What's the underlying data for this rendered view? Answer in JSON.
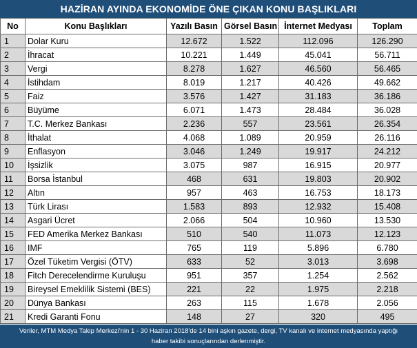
{
  "title": "HAZİRAN AYINDA EKONOMİDE ÖNE ÇIKAN KONU BAŞLIKLARI",
  "columns": [
    "No",
    "Konu Başlıkları",
    "Yazılı Basın",
    "Görsel Basın",
    "İnternet Medyası",
    "Toplam"
  ],
  "rows": [
    {
      "no": "1",
      "topic": "Dolar Kuru",
      "print": "12.672",
      "visual": "1.522",
      "internet": "112.096",
      "total": "126.290"
    },
    {
      "no": "2",
      "topic": "İhracat",
      "print": "10.221",
      "visual": "1.449",
      "internet": "45.041",
      "total": "56.711"
    },
    {
      "no": "3",
      "topic": "Vergi",
      "print": "8.278",
      "visual": "1.627",
      "internet": "46.560",
      "total": "56.465"
    },
    {
      "no": "4",
      "topic": "İstihdam",
      "print": "8.019",
      "visual": "1.217",
      "internet": "40.426",
      "total": "49.662"
    },
    {
      "no": "5",
      "topic": "Faiz",
      "print": "3.576",
      "visual": "1.427",
      "internet": "31.183",
      "total": "36.186"
    },
    {
      "no": "6",
      "topic": "Büyüme",
      "print": "6.071",
      "visual": "1.473",
      "internet": "28.484",
      "total": "36.028"
    },
    {
      "no": "7",
      "topic": "T.C. Merkez Bankası",
      "print": "2.236",
      "visual": "557",
      "internet": "23.561",
      "total": "26.354"
    },
    {
      "no": "8",
      "topic": "İthalat",
      "print": "4.068",
      "visual": "1.089",
      "internet": "20.959",
      "total": "26.116"
    },
    {
      "no": "9",
      "topic": "Enflasyon",
      "print": "3.046",
      "visual": "1.249",
      "internet": "19.917",
      "total": "24.212"
    },
    {
      "no": "10",
      "topic": "İşsizlik",
      "print": "3.075",
      "visual": "987",
      "internet": "16.915",
      "total": "20.977"
    },
    {
      "no": "11",
      "topic": "Borsa İstanbul",
      "print": "468",
      "visual": "631",
      "internet": "19.803",
      "total": "20.902"
    },
    {
      "no": "12",
      "topic": "Altın",
      "print": "957",
      "visual": "463",
      "internet": "16.753",
      "total": "18.173"
    },
    {
      "no": "13",
      "topic": "Türk Lirası",
      "print": "1.583",
      "visual": "893",
      "internet": "12.932",
      "total": "15.408"
    },
    {
      "no": "14",
      "topic": "Asgari Ücret",
      "print": "2.066",
      "visual": "504",
      "internet": "10.960",
      "total": "13.530"
    },
    {
      "no": "15",
      "topic": "FED Amerika Merkez Bankası",
      "print": "510",
      "visual": "540",
      "internet": "11.073",
      "total": "12.123"
    },
    {
      "no": "16",
      "topic": "IMF",
      "print": "765",
      "visual": "119",
      "internet": "5.896",
      "total": "6.780"
    },
    {
      "no": "17",
      "topic": "Özel Tüketim Vergisi (ÖTV)",
      "print": "633",
      "visual": "52",
      "internet": "3.013",
      "total": "3.698"
    },
    {
      "no": "18",
      "topic": "Fitch Derecelendirme Kuruluşu",
      "print": "951",
      "visual": "357",
      "internet": "1.254",
      "total": "2.562"
    },
    {
      "no": "19",
      "topic": "Bireysel Emeklilik Sistemi (BES)",
      "print": "221",
      "visual": "22",
      "internet": "1.975",
      "total": "2.218"
    },
    {
      "no": "20",
      "topic": "Dünya Bankası",
      "print": "263",
      "visual": "115",
      "internet": "1.678",
      "total": "2.056"
    },
    {
      "no": "21",
      "topic": "Kredi Garanti Fonu",
      "print": "148",
      "visual": "27",
      "internet": "320",
      "total": "495"
    }
  ],
  "footer": {
    "line1": "Veriler, MTM Medya Takip Merkezi'nin 1 - 30 Haziran 2018'de 14 bini aşkın gazete, dergi, TV kanalı ve internet medyasında yaptığı",
    "line2": "haber takibi sonuçlarından derlenmiştir."
  },
  "colors": {
    "header_bg": "#1f4e79",
    "shade": "#d9d9d9",
    "text_light": "#ffffff"
  }
}
